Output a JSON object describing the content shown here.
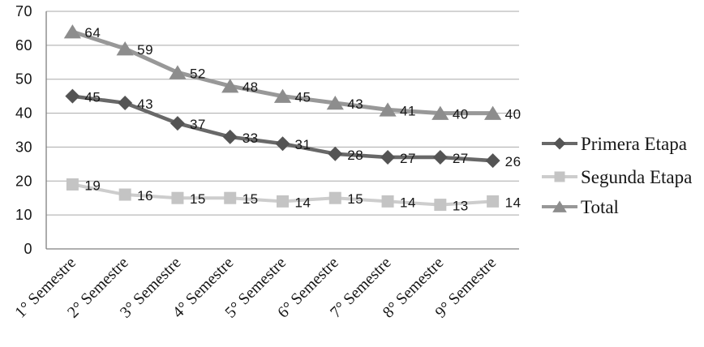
{
  "chart_data": {
    "type": "line",
    "title": "",
    "xlabel": "",
    "ylabel": "",
    "categories": [
      "1° Semestre",
      "2° Semestre",
      "3° Semestre",
      "4° Semestre",
      "5° Semestre",
      "6° Semestre",
      "7° Semestre",
      "8° Semestre",
      "9° Semestre"
    ],
    "series": [
      {
        "name": "Primera Etapa",
        "marker": "diamond",
        "color": "#545454",
        "line_color": "#686868",
        "values": [
          45,
          43,
          37,
          33,
          31,
          28,
          27,
          27,
          26
        ]
      },
      {
        "name": "Segunda Etapa",
        "marker": "square",
        "color": "#c4c4c4",
        "line_color": "#cdcdcd",
        "values": [
          19,
          16,
          15,
          15,
          14,
          15,
          14,
          13,
          14
        ]
      },
      {
        "name": "Total",
        "marker": "triangle",
        "color": "#8d8d8d",
        "line_color": "#989898",
        "values": [
          64,
          59,
          52,
          48,
          45,
          43,
          41,
          40,
          40
        ]
      }
    ],
    "ylim": [
      0,
      70
    ],
    "yticks": [
      0,
      10,
      20,
      30,
      40,
      50,
      60,
      70
    ],
    "grid": true,
    "data_labels": true,
    "legend_position": "right",
    "legend": [
      "Primera Etapa",
      "Segunda Etapa",
      "Total"
    ]
  },
  "style": {
    "grid_color": "#a9a9a9",
    "axis_color": "#808080",
    "text_color": "#161616",
    "background": "#ffffff"
  }
}
